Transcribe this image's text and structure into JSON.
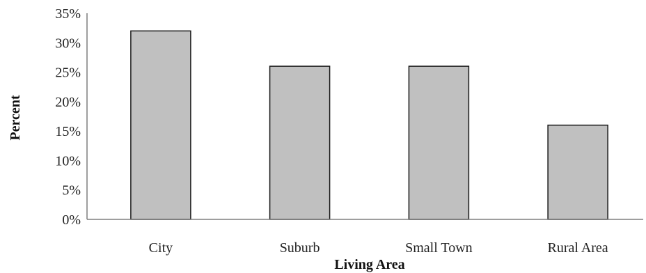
{
  "chart_data": {
    "type": "bar",
    "categories": [
      "City",
      "Suburb",
      "Small Town",
      "Rural Area"
    ],
    "values": [
      32,
      26,
      26,
      16
    ],
    "xlabel": "Living Area",
    "ylabel": "Percent",
    "ylim": [
      0,
      35
    ],
    "yticks": [
      "0%",
      "5%",
      "10%",
      "15%",
      "20%",
      "25%",
      "30%",
      "35%"
    ],
    "grid": false,
    "bar_color": "#c0c0c0",
    "bar_edge_color": "#1a1a1a"
  }
}
